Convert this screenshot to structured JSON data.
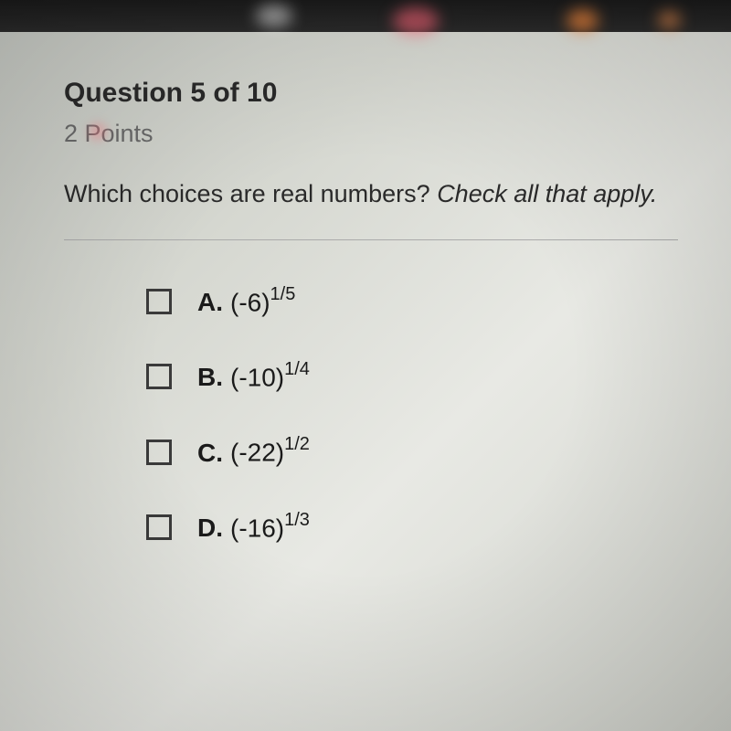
{
  "header": {
    "title": "Question 5 of 10",
    "points": "2 Points"
  },
  "question": {
    "prompt": "Which choices are real numbers? ",
    "instruction": "Check all that apply."
  },
  "options": [
    {
      "letter": "A.",
      "base": "(-6)",
      "exp": "1/5"
    },
    {
      "letter": "B.",
      "base": "(-10)",
      "exp": "1/4"
    },
    {
      "letter": "C.",
      "base": "(-22)",
      "exp": "1/2"
    },
    {
      "letter": "D.",
      "base": "(-16)",
      "exp": "1/3"
    }
  ]
}
